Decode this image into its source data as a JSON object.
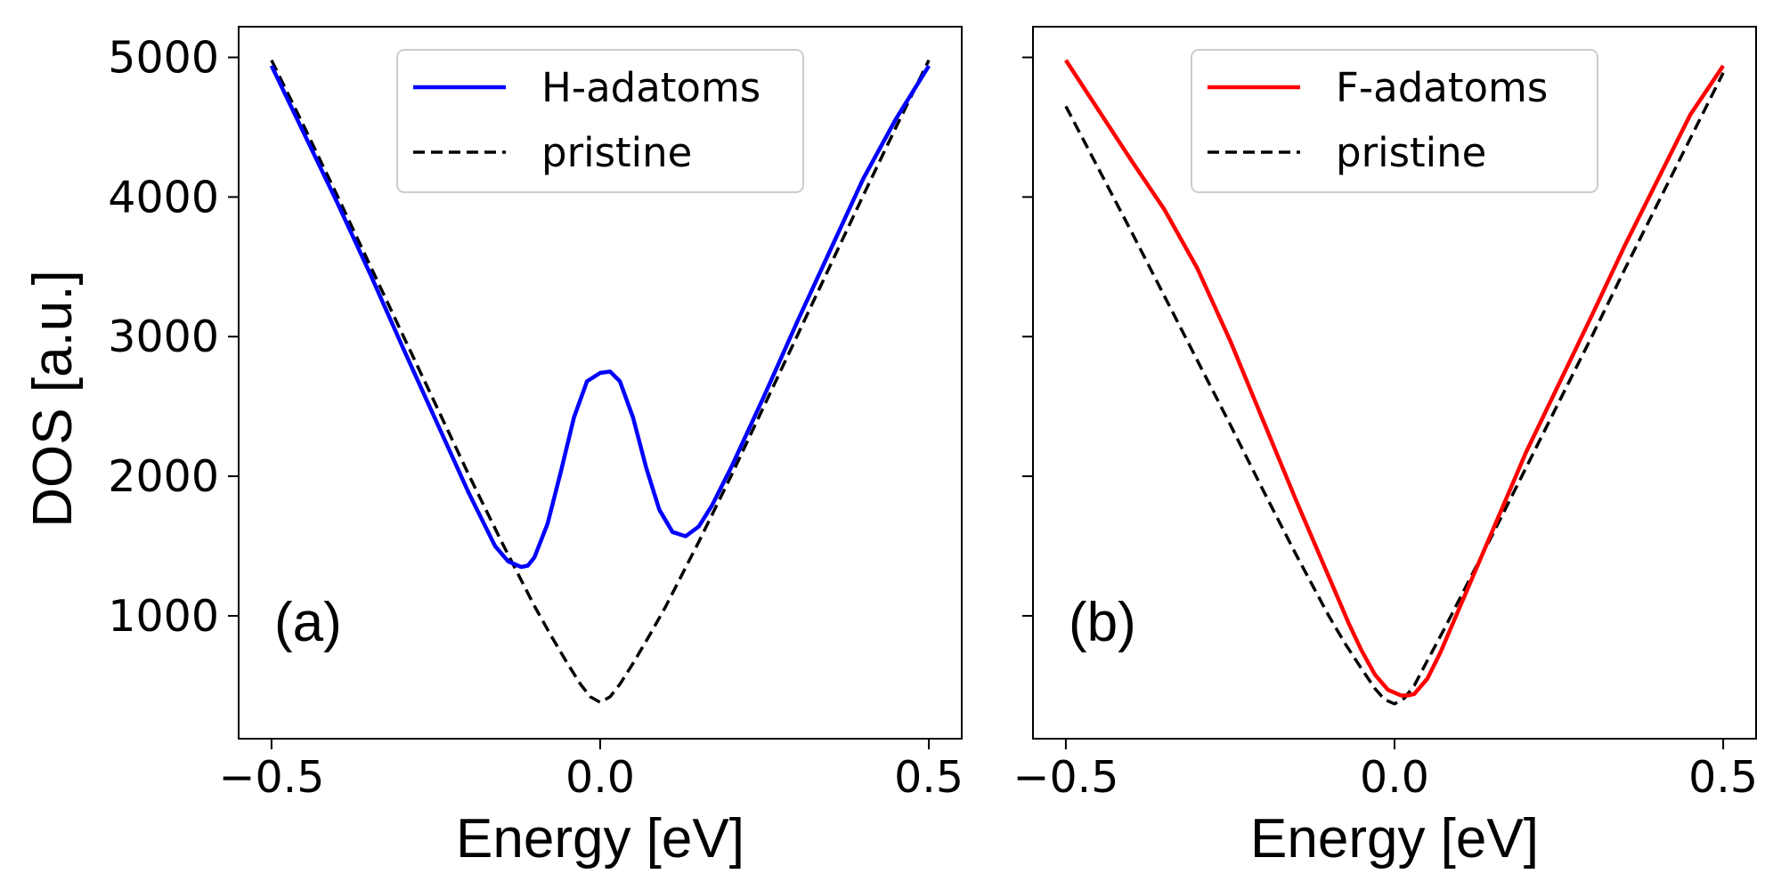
{
  "chart_data": [
    {
      "type": "line",
      "panel_label": "(a)",
      "xlabel": "Energy [eV]",
      "ylabel": "DOS [a.u.]",
      "xlim": [
        -0.55,
        0.55
      ],
      "ylim": [
        120,
        5220
      ],
      "xticks": [
        -0.5,
        0.0,
        0.5
      ],
      "xtick_labels": [
        "−0.5",
        "0.0",
        "0.5"
      ],
      "yticks": [
        1000,
        2000,
        3000,
        4000,
        5000
      ],
      "ytick_labels": [
        "1000",
        "2000",
        "3000",
        "4000",
        "5000"
      ],
      "show_ytick_labels": true,
      "legend_position": "top-right",
      "series": [
        {
          "name": "H-adatoms",
          "color": "#0000ff",
          "style": "solid",
          "x": [
            -0.5,
            -0.45,
            -0.4,
            -0.35,
            -0.3,
            -0.25,
            -0.2,
            -0.16,
            -0.14,
            -0.12,
            -0.11,
            -0.1,
            -0.08,
            -0.06,
            -0.04,
            -0.02,
            0.0,
            0.015,
            0.03,
            0.05,
            0.07,
            0.09,
            0.11,
            0.13,
            0.15,
            0.17,
            0.2,
            0.25,
            0.3,
            0.35,
            0.4,
            0.45,
            0.5
          ],
          "y": [
            4940,
            4450,
            3960,
            3450,
            2920,
            2400,
            1880,
            1500,
            1390,
            1350,
            1360,
            1420,
            1660,
            2030,
            2420,
            2680,
            2740,
            2750,
            2680,
            2420,
            2060,
            1760,
            1600,
            1570,
            1640,
            1790,
            2070,
            2580,
            3110,
            3620,
            4130,
            4560,
            4940
          ]
        },
        {
          "name": "pristine",
          "color": "#000000",
          "style": "dashed",
          "x": [
            -0.5,
            -0.45,
            -0.4,
            -0.35,
            -0.3,
            -0.25,
            -0.2,
            -0.15,
            -0.1,
            -0.075,
            -0.05,
            -0.03,
            -0.015,
            0.0,
            0.015,
            0.03,
            0.05,
            0.075,
            0.1,
            0.15,
            0.2,
            0.25,
            0.3,
            0.35,
            0.4,
            0.45,
            0.5
          ],
          "y": [
            4980,
            4500,
            4010,
            3510,
            3010,
            2510,
            2010,
            1530,
            1070,
            860,
            660,
            510,
            420,
            380,
            420,
            510,
            660,
            860,
            1070,
            1530,
            2010,
            2510,
            3010,
            3510,
            4010,
            4500,
            4980
          ]
        }
      ]
    },
    {
      "type": "line",
      "panel_label": "(b)",
      "xlabel": "Energy [eV]",
      "ylabel": "",
      "xlim": [
        -0.55,
        0.55
      ],
      "ylim": [
        120,
        5220
      ],
      "xticks": [
        -0.5,
        0.0,
        0.5
      ],
      "xtick_labels": [
        "−0.5",
        "0.0",
        "0.5"
      ],
      "yticks": [
        1000,
        2000,
        3000,
        4000,
        5000
      ],
      "ytick_labels": [],
      "show_ytick_labels": false,
      "legend_position": "top-right",
      "series": [
        {
          "name": "F-adatoms",
          "color": "#ff0000",
          "style": "solid",
          "x": [
            -0.5,
            -0.45,
            -0.4,
            -0.35,
            -0.3,
            -0.25,
            -0.2,
            -0.15,
            -0.1,
            -0.07,
            -0.05,
            -0.03,
            -0.01,
            0.01,
            0.02,
            0.03,
            0.05,
            0.07,
            0.1,
            0.15,
            0.2,
            0.25,
            0.3,
            0.35,
            0.4,
            0.45,
            0.5
          ],
          "y": [
            4980,
            4620,
            4260,
            3910,
            3490,
            2970,
            2400,
            1830,
            1280,
            950,
            750,
            580,
            470,
            430,
            430,
            440,
            550,
            740,
            1070,
            1620,
            2170,
            2660,
            3150,
            3650,
            4120,
            4590,
            4940
          ]
        },
        {
          "name": "pristine",
          "color": "#000000",
          "style": "dashed",
          "x": [
            -0.5,
            -0.45,
            -0.4,
            -0.35,
            -0.3,
            -0.25,
            -0.2,
            -0.15,
            -0.1,
            -0.075,
            -0.05,
            -0.03,
            -0.015,
            0.0,
            0.015,
            0.03,
            0.05,
            0.075,
            0.1,
            0.15,
            0.2,
            0.25,
            0.3,
            0.35,
            0.4,
            0.45,
            0.5
          ],
          "y": [
            4650,
            4200,
            3750,
            3290,
            2830,
            2370,
            1900,
            1440,
            1000,
            800,
            620,
            480,
            400,
            370,
            410,
            500,
            680,
            900,
            1130,
            1590,
            2060,
            2530,
            3000,
            3480,
            3950,
            4420,
            4890
          ]
        }
      ]
    }
  ]
}
